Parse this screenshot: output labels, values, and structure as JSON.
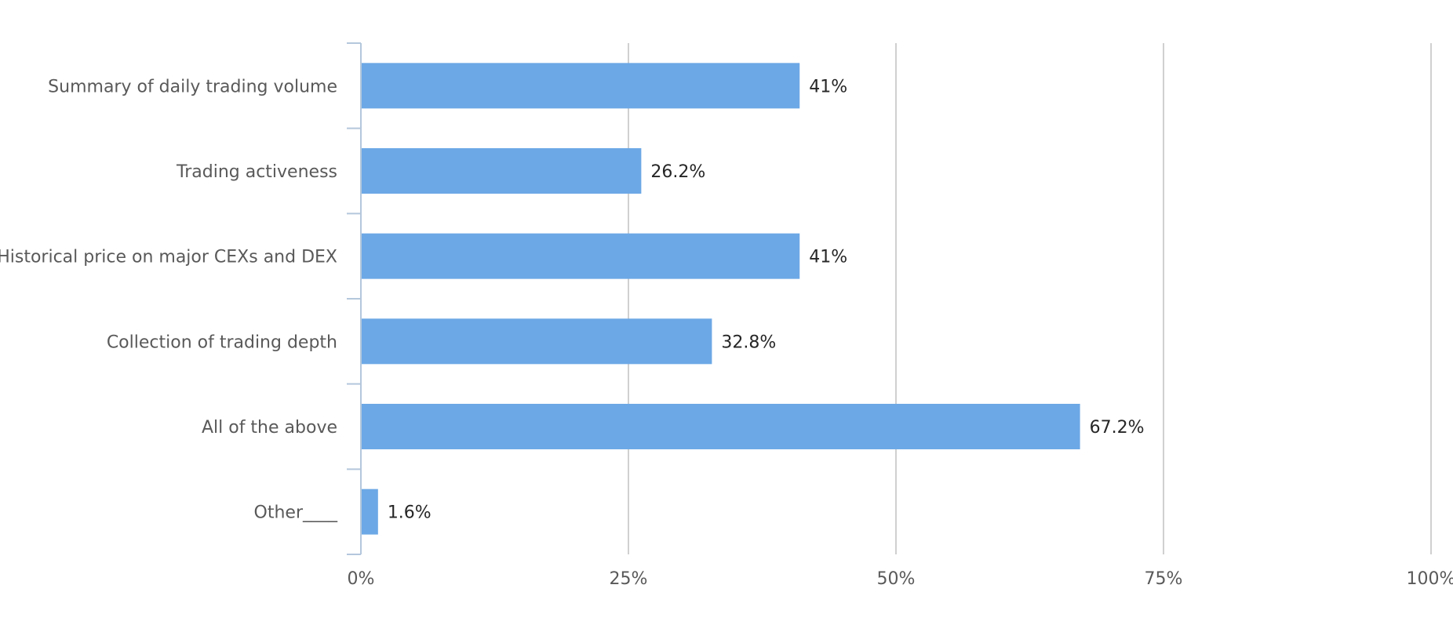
{
  "chart_data": {
    "type": "bar",
    "orientation": "horizontal",
    "categories": [
      "Summary of daily trading volume",
      "Trading activeness",
      "Historical price on major CEXs and DEX",
      "Collection of trading depth",
      "All of the above",
      "Other____"
    ],
    "values": [
      41,
      26.2,
      41,
      32.8,
      67.2,
      1.6
    ],
    "data_labels": [
      "41%",
      "26.2%",
      "41%",
      "32.8%",
      "67.2%",
      "1.6%"
    ],
    "x_ticks": [
      0,
      25,
      50,
      75,
      100
    ],
    "x_tick_labels": [
      "0%",
      "25%",
      "50%",
      "75%",
      "100%"
    ],
    "xlim": [
      0,
      100
    ],
    "grid": "vertical",
    "legend": "none",
    "title": "",
    "xlabel": "",
    "ylabel": ""
  },
  "colors": {
    "bar": "#6ca8e6",
    "grid": "#d0d0d0",
    "axis": "#b4c7dc"
  }
}
